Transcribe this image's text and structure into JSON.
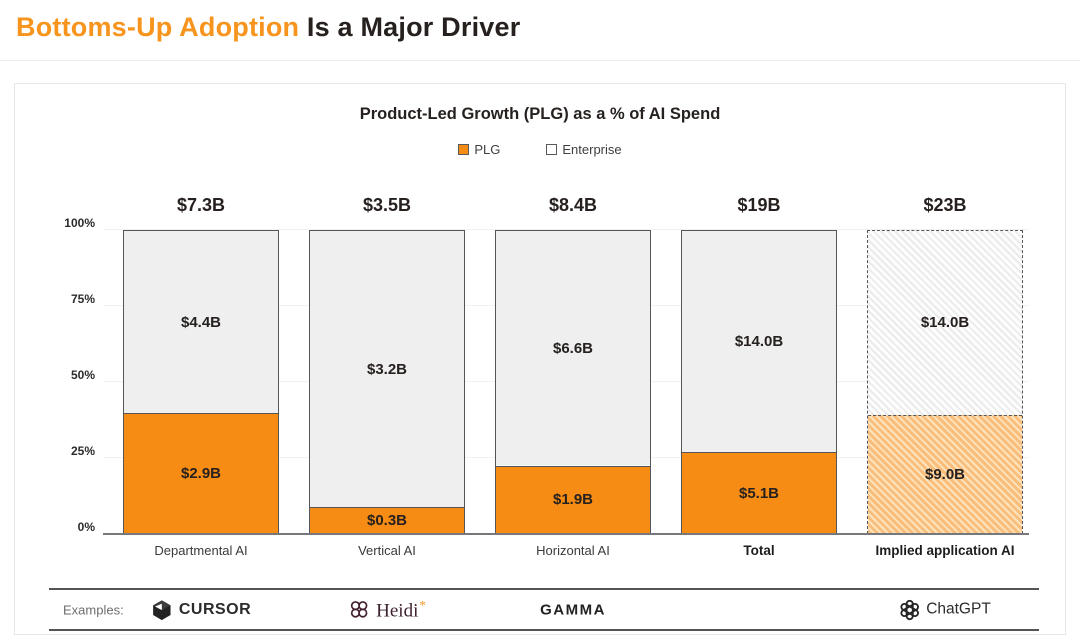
{
  "header": {
    "title_accent": "Bottoms-Up Adoption",
    "title_rest": " Is a Major Driver"
  },
  "chart": {
    "title": "Product-Led Growth (PLG) as a % of AI Spend",
    "legend": [
      "PLG",
      "Enterprise"
    ]
  },
  "chart_data": {
    "type": "bar",
    "subtype": "stacked-100pct",
    "title": "Product-Led Growth (PLG) as a % of AI Spend",
    "categories": [
      "Departmental AI",
      "Vertical AI",
      "Horizontal AI",
      "Total",
      "Implied application AI"
    ],
    "totals": [
      "$7.3B",
      "$3.5B",
      "$8.4B",
      "$19B",
      "$23B"
    ],
    "series": [
      {
        "name": "PLG",
        "color": "#F78C14",
        "values": [
          2.9,
          0.3,
          1.9,
          5.1,
          9.0
        ],
        "labels": [
          "$2.9B",
          "$0.3B",
          "$1.9B",
          "$5.1B",
          "$9.0B"
        ]
      },
      {
        "name": "Enterprise",
        "color": "#EFEFEF",
        "values": [
          4.4,
          3.2,
          6.6,
          14.0,
          14.0
        ],
        "labels": [
          "$4.4B",
          "$3.2B",
          "$6.6B",
          "$14.0B",
          "$14.0B"
        ]
      }
    ],
    "y_ticks": [
      "0%",
      "25%",
      "50%",
      "75%",
      "100%"
    ],
    "y_tick_values": [
      0,
      25,
      50,
      75,
      100
    ],
    "ylim": [
      0,
      100
    ],
    "grid": "faint horizontal",
    "legend_position": "top center",
    "dashed_estimate_index": 4,
    "bold_category_indices": [
      3,
      4
    ]
  },
  "examples": {
    "label": "Examples:",
    "logos": {
      "cursor": "CURSOR",
      "heidi": "Heidi",
      "heidi_superscript": "*",
      "gamma": "GAMMA",
      "chatgpt": "ChatGPT"
    }
  },
  "colors": {
    "accent_orange": "#F7941D",
    "plg_fill": "#F78C14",
    "enterprise_fill": "#EFEFEF",
    "bar_border": "#55565A",
    "text_dark": "#26211f"
  }
}
